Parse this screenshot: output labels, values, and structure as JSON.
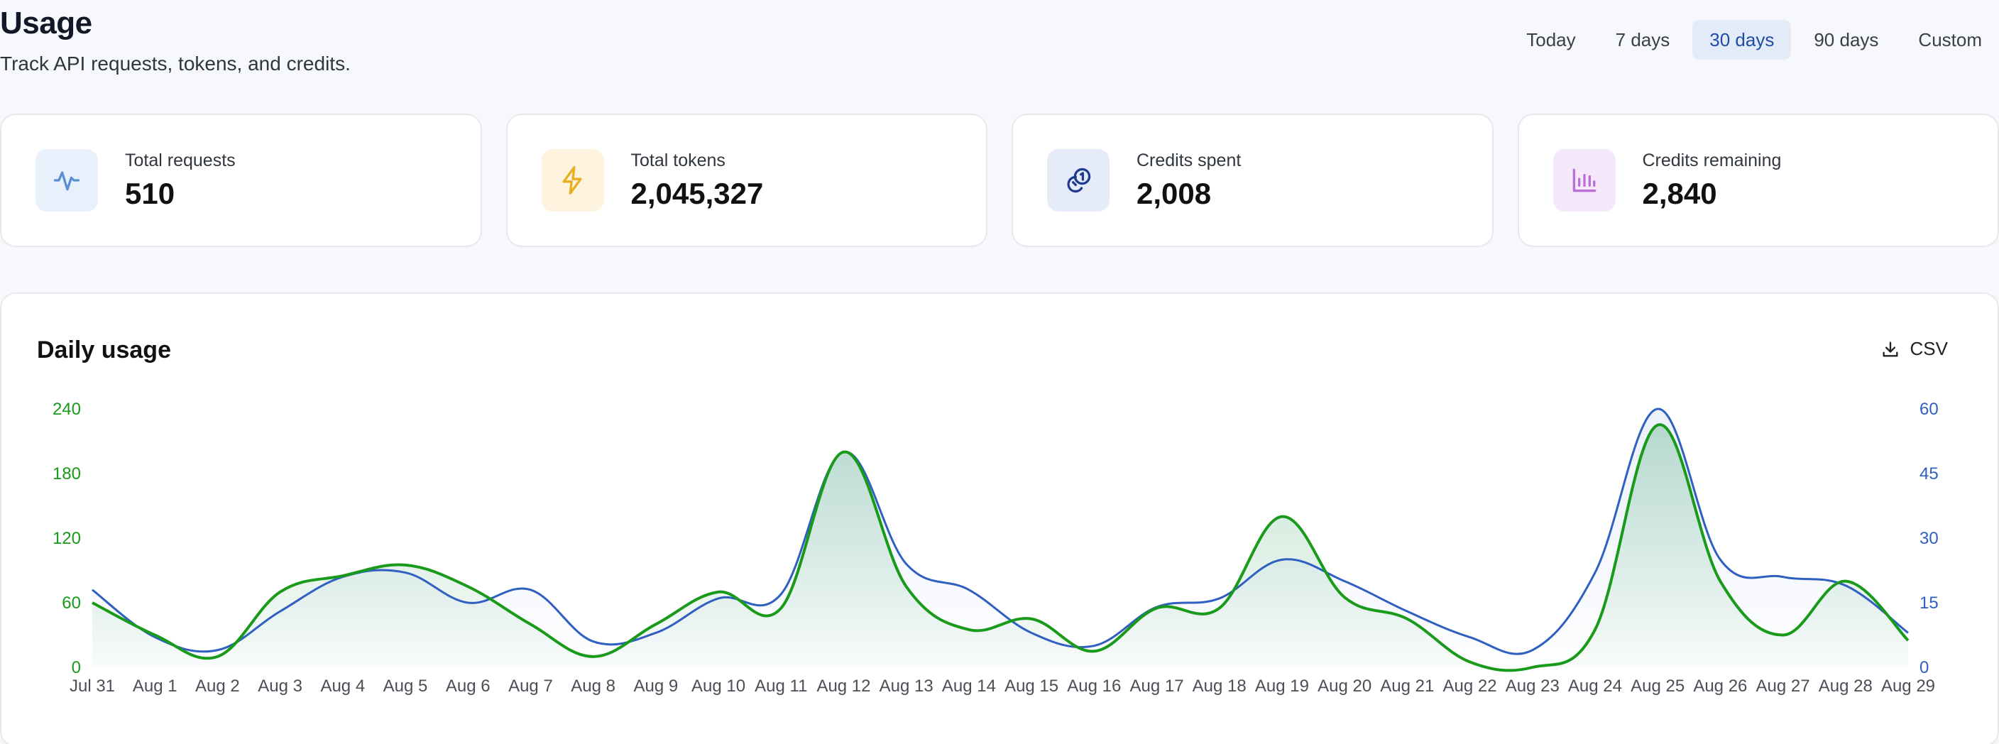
{
  "header": {
    "title": "Usage",
    "subtitle": "Track API requests, tokens, and credits."
  },
  "range_tabs": [
    {
      "label": "Today",
      "active": false
    },
    {
      "label": "7 days",
      "active": false
    },
    {
      "label": "30 days",
      "active": true
    },
    {
      "label": "90 days",
      "active": false
    },
    {
      "label": "Custom",
      "active": false
    }
  ],
  "stats": [
    {
      "label": "Total requests",
      "value": "510",
      "icon": "activity-icon",
      "icon_color": "#5a8fd6",
      "icon_bg": "#e8f0fb"
    },
    {
      "label": "Total tokens",
      "value": "2,045,327",
      "icon": "lightning-icon",
      "icon_color": "#e8b020",
      "icon_bg": "#fdf3de"
    },
    {
      "label": "Credits spent",
      "value": "2,008",
      "icon": "coins-icon",
      "icon_color": "#1f3b8f",
      "icon_bg": "#e6ebfa"
    },
    {
      "label": "Credits remaining",
      "value": "2,840",
      "icon": "bar-chart-icon",
      "icon_color": "#b86fd6",
      "icon_bg": "#f5e8fb"
    }
  ],
  "chart": {
    "title": "Daily usage",
    "csv_label": "CSV"
  },
  "colors": {
    "green_series": "#1a9a1a",
    "blue_series": "#2f5fc0",
    "left_axis": "#1a9a1a",
    "right_axis": "#2f5fc0"
  },
  "chart_data": {
    "type": "line",
    "categories": [
      "Jul 31",
      "Aug 1",
      "Aug 2",
      "Aug 3",
      "Aug 4",
      "Aug 5",
      "Aug 6",
      "Aug 7",
      "Aug 8",
      "Aug 9",
      "Aug 10",
      "Aug 11",
      "Aug 12",
      "Aug 13",
      "Aug 14",
      "Aug 15",
      "Aug 16",
      "Aug 17",
      "Aug 18",
      "Aug 19",
      "Aug 20",
      "Aug 21",
      "Aug 22",
      "Aug 23",
      "Aug 24",
      "Aug 25",
      "Aug 26",
      "Aug 27",
      "Aug 28",
      "Aug 29"
    ],
    "y_left": {
      "ticks": [
        "0",
        "60",
        "120",
        "180",
        "240"
      ],
      "range": [
        0,
        240
      ]
    },
    "y_right": {
      "ticks": [
        "0",
        "15",
        "30",
        "45",
        "60"
      ],
      "range": [
        0,
        60
      ]
    },
    "series": [
      {
        "axis": "left",
        "values": [
          60,
          30,
          10,
          70,
          85,
          95,
          75,
          40,
          10,
          40,
          70,
          55,
          200,
          75,
          35,
          45,
          15,
          55,
          55,
          140,
          65,
          45,
          5,
          0,
          35,
          225,
          80,
          30,
          80,
          25
        ]
      },
      {
        "axis": "right",
        "values": [
          18,
          7,
          4,
          13,
          21,
          22,
          15,
          18,
          6,
          8,
          16,
          17,
          50,
          24,
          18,
          8,
          5,
          14,
          16,
          25,
          20,
          13,
          7,
          4,
          22,
          60,
          25,
          21,
          19,
          8
        ]
      }
    ],
    "grid": false,
    "legend": "none"
  }
}
